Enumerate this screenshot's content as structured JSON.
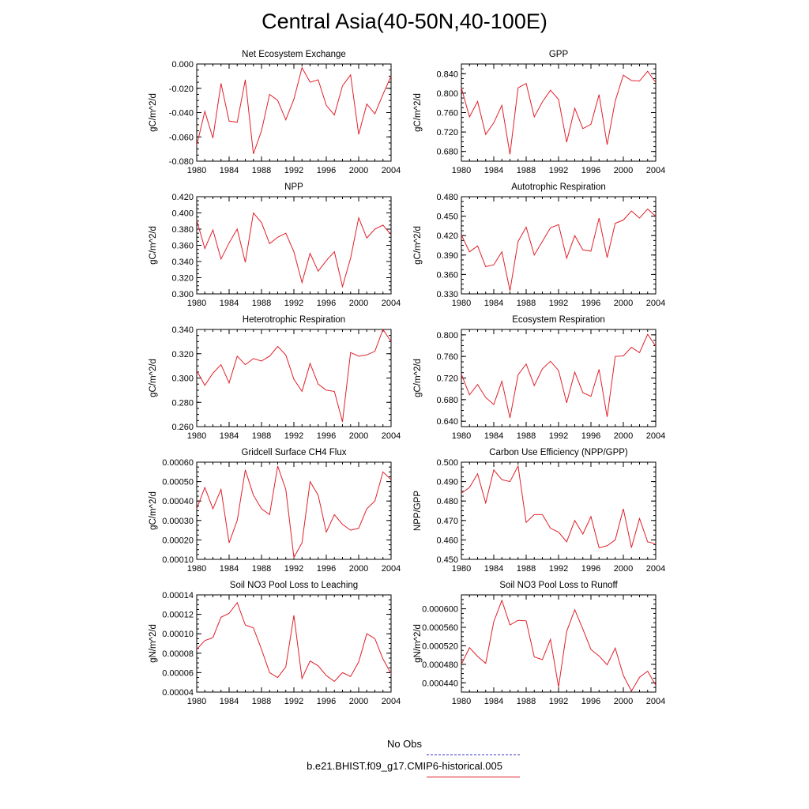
{
  "figure": {
    "title": "Central Asia(40-50N,40-100E)",
    "legend": [
      {
        "label": "No Obs",
        "color": "#3a3ac8",
        "style": "dashed"
      },
      {
        "label": "b.e21.BHIST.f09_g17.CMIP6-historical.005",
        "color": "#e0202a",
        "style": "solid"
      }
    ]
  },
  "chart_data": [
    {
      "type": "line",
      "title": "Net Ecosystem Exchange",
      "xlabel": "",
      "ylabel": "gC/m^2/d",
      "xlim": [
        1980,
        2004
      ],
      "ylim": [
        -0.08,
        0.0
      ],
      "xticks": [
        1980,
        1984,
        1988,
        1992,
        1996,
        2000,
        2004
      ],
      "yticks": [
        "-0.080",
        "-0.060",
        "-0.040",
        "-0.020",
        "0.000"
      ],
      "x": [
        1980,
        1981,
        1982,
        1983,
        1984,
        1985,
        1986,
        1987,
        1988,
        1989,
        1990,
        1991,
        1992,
        1993,
        1994,
        1995,
        1996,
        1997,
        1998,
        1999,
        2000,
        2001,
        2002,
        2003,
        2004
      ],
      "values": [
        -0.067,
        -0.039,
        -0.061,
        -0.016,
        -0.047,
        -0.048,
        -0.013,
        -0.074,
        -0.055,
        -0.025,
        -0.03,
        -0.046,
        -0.029,
        -0.003,
        -0.015,
        -0.013,
        -0.034,
        -0.042,
        -0.018,
        -0.009,
        -0.058,
        -0.033,
        -0.041,
        -0.025,
        -0.01
      ]
    },
    {
      "type": "line",
      "title": "GPP",
      "xlabel": "",
      "ylabel": "gC/m^2/d",
      "xlim": [
        1980,
        2004
      ],
      "ylim": [
        0.66,
        0.86
      ],
      "xticks": [
        1980,
        1984,
        1988,
        1992,
        1996,
        2000,
        2004
      ],
      "yticks": [
        "0.680",
        "0.720",
        "0.760",
        "0.800",
        "0.840"
      ],
      "x": [
        1980,
        1981,
        1982,
        1983,
        1984,
        1985,
        1986,
        1987,
        1988,
        1989,
        1990,
        1991,
        1992,
        1993,
        1994,
        1995,
        1996,
        1997,
        1998,
        1999,
        2000,
        2001,
        2002,
        2003,
        2004
      ],
      "values": [
        0.811,
        0.751,
        0.783,
        0.715,
        0.739,
        0.775,
        0.674,
        0.811,
        0.82,
        0.751,
        0.782,
        0.806,
        0.787,
        0.699,
        0.769,
        0.727,
        0.736,
        0.797,
        0.694,
        0.784,
        0.837,
        0.826,
        0.825,
        0.845,
        0.822
      ]
    },
    {
      "type": "line",
      "title": "NPP",
      "xlabel": "",
      "ylabel": "gC/m^2/d",
      "xlim": [
        1980,
        2004
      ],
      "ylim": [
        0.3,
        0.42
      ],
      "xticks": [
        1980,
        1984,
        1988,
        1992,
        1996,
        2000,
        2004
      ],
      "yticks": [
        "0.300",
        "0.320",
        "0.340",
        "0.360",
        "0.380",
        "0.400",
        "0.420"
      ],
      "x": [
        1980,
        1981,
        1982,
        1983,
        1984,
        1985,
        1986,
        1987,
        1988,
        1989,
        1990,
        1991,
        1992,
        1993,
        1994,
        1995,
        1996,
        1997,
        1998,
        1999,
        2000,
        2001,
        2002,
        2003,
        2004
      ],
      "values": [
        0.391,
        0.356,
        0.379,
        0.343,
        0.363,
        0.38,
        0.339,
        0.4,
        0.388,
        0.362,
        0.37,
        0.375,
        0.352,
        0.314,
        0.35,
        0.328,
        0.341,
        0.352,
        0.309,
        0.344,
        0.394,
        0.369,
        0.38,
        0.385,
        0.373
      ]
    },
    {
      "type": "line",
      "title": "Autotrophic Respiration",
      "xlabel": "",
      "ylabel": "gC/m^2/d",
      "xlim": [
        1980,
        2004
      ],
      "ylim": [
        0.33,
        0.48
      ],
      "xticks": [
        1980,
        1984,
        1988,
        1992,
        1996,
        2000,
        2004
      ],
      "yticks": [
        "0.330",
        "0.360",
        "0.390",
        "0.420",
        "0.450",
        "0.480"
      ],
      "x": [
        1980,
        1981,
        1982,
        1983,
        1984,
        1985,
        1986,
        1987,
        1988,
        1989,
        1990,
        1991,
        1992,
        1993,
        1994,
        1995,
        1996,
        1997,
        1998,
        1999,
        2000,
        2001,
        2002,
        2003,
        2004
      ],
      "values": [
        0.421,
        0.395,
        0.404,
        0.372,
        0.375,
        0.395,
        0.335,
        0.411,
        0.433,
        0.39,
        0.411,
        0.432,
        0.437,
        0.385,
        0.42,
        0.398,
        0.396,
        0.447,
        0.386,
        0.439,
        0.444,
        0.458,
        0.447,
        0.461,
        0.45
      ]
    },
    {
      "type": "line",
      "title": "Heterotrophic Respiration",
      "xlabel": "",
      "ylabel": "gC/m^2/d",
      "xlim": [
        1980,
        2004
      ],
      "ylim": [
        0.26,
        0.34
      ],
      "xticks": [
        1980,
        1984,
        1988,
        1992,
        1996,
        2000,
        2004
      ],
      "yticks": [
        "0.260",
        "0.280",
        "0.300",
        "0.320",
        "0.340"
      ],
      "x": [
        1980,
        1981,
        1982,
        1983,
        1984,
        1985,
        1986,
        1987,
        1988,
        1989,
        1990,
        1991,
        1992,
        1993,
        1994,
        1995,
        1996,
        1997,
        1998,
        1999,
        2000,
        2001,
        2002,
        2003,
        2004
      ],
      "values": [
        0.306,
        0.294,
        0.304,
        0.311,
        0.296,
        0.318,
        0.311,
        0.316,
        0.314,
        0.318,
        0.326,
        0.319,
        0.299,
        0.289,
        0.312,
        0.295,
        0.29,
        0.289,
        0.264,
        0.321,
        0.318,
        0.319,
        0.322,
        0.34,
        0.33
      ]
    },
    {
      "type": "line",
      "title": "Ecosystem Respiration",
      "xlabel": "",
      "ylabel": "gC/m^2/d",
      "xlim": [
        1980,
        2004
      ],
      "ylim": [
        0.63,
        0.81
      ],
      "xticks": [
        1980,
        1984,
        1988,
        1992,
        1996,
        2000,
        2004
      ],
      "yticks": [
        "0.640",
        "0.680",
        "0.720",
        "0.760",
        "0.800"
      ],
      "x": [
        1980,
        1981,
        1982,
        1983,
        1984,
        1985,
        1986,
        1987,
        1988,
        1989,
        1990,
        1991,
        1992,
        1993,
        1994,
        1995,
        1996,
        1997,
        1998,
        1999,
        2000,
        2001,
        2002,
        2003,
        2004
      ],
      "values": [
        0.727,
        0.689,
        0.708,
        0.684,
        0.671,
        0.714,
        0.646,
        0.726,
        0.746,
        0.706,
        0.737,
        0.751,
        0.734,
        0.674,
        0.731,
        0.693,
        0.686,
        0.736,
        0.648,
        0.76,
        0.761,
        0.777,
        0.767,
        0.801,
        0.779
      ]
    },
    {
      "type": "line",
      "title": "Gridcell Surface CH4 Flux",
      "xlabel": "",
      "ylabel": "gC/m^2/d",
      "xlim": [
        1980,
        2004
      ],
      "ylim": [
        0.0001,
        0.0006
      ],
      "xticks": [
        1980,
        1984,
        1988,
        1992,
        1996,
        2000,
        2004
      ],
      "yticks": [
        "0.00010",
        "0.00020",
        "0.00030",
        "0.00040",
        "0.00050",
        "0.00060"
      ],
      "x": [
        1980,
        1981,
        1982,
        1983,
        1984,
        1985,
        1986,
        1987,
        1988,
        1989,
        1990,
        1991,
        1992,
        1993,
        1994,
        1995,
        1996,
        1997,
        1998,
        1999,
        2000,
        2001,
        2002,
        2003,
        2004
      ],
      "values": [
        0.00036,
        0.00047,
        0.00036,
        0.00046,
        0.000185,
        0.0003,
        0.00056,
        0.00043,
        0.00036,
        0.00033,
        0.00058,
        0.00046,
        0.00011,
        0.000185,
        0.0005,
        0.00043,
        0.00024,
        0.00033,
        0.00028,
        0.00025,
        0.00026,
        0.00036,
        0.0004,
        0.00055,
        0.00051
      ]
    },
    {
      "type": "line",
      "title": "Carbon Use Efficiency (NPP/GPP)",
      "xlabel": "",
      "ylabel": "NPP/GPP",
      "xlim": [
        1980,
        2004
      ],
      "ylim": [
        0.45,
        0.5
      ],
      "xticks": [
        1980,
        1984,
        1988,
        1992,
        1996,
        2000,
        2004
      ],
      "yticks": [
        "0.450",
        "0.460",
        "0.470",
        "0.480",
        "0.490",
        "0.500"
      ],
      "x": [
        1980,
        1981,
        1982,
        1983,
        1984,
        1985,
        1986,
        1987,
        1988,
        1989,
        1990,
        1991,
        1992,
        1993,
        1994,
        1995,
        1996,
        1997,
        1998,
        1999,
        2000,
        2001,
        2002,
        2003,
        2004
      ],
      "values": [
        0.484,
        0.487,
        0.494,
        0.479,
        0.496,
        0.491,
        0.49,
        0.498,
        0.469,
        0.473,
        0.473,
        0.466,
        0.464,
        0.459,
        0.47,
        0.463,
        0.472,
        0.456,
        0.457,
        0.46,
        0.476,
        0.456,
        0.471,
        0.459,
        0.458
      ]
    },
    {
      "type": "line",
      "title": "Soil NO3 Pool Loss to Leaching",
      "xlabel": "",
      "ylabel": "gN/m^2/d",
      "xlim": [
        1980,
        2004
      ],
      "ylim": [
        4e-05,
        0.00014
      ],
      "xticks": [
        1980,
        1984,
        1988,
        1992,
        1996,
        2000,
        2004
      ],
      "yticks": [
        "0.00004",
        "0.00006",
        "0.00008",
        "0.00010",
        "0.00012",
        "0.00014"
      ],
      "x": [
        1980,
        1981,
        1982,
        1983,
        1984,
        1985,
        1986,
        1987,
        1988,
        1989,
        1990,
        1991,
        1992,
        1993,
        1994,
        1995,
        1996,
        1997,
        1998,
        1999,
        2000,
        2001,
        2002,
        2003,
        2004
      ],
      "values": [
        8.4e-05,
        9.3e-05,
        9.6e-05,
        0.000117,
        0.000121,
        0.000132,
        0.000109,
        0.000106,
        8.4e-05,
        6e-05,
        5.5e-05,
        6.6e-05,
        0.000119,
        5.4e-05,
        7.2e-05,
        6.7e-05,
        5.7e-05,
        5.1e-05,
        6e-05,
        5.6e-05,
        7.1e-05,
        0.0001,
        9.5e-05,
        7.4e-05,
        5.9e-05
      ]
    },
    {
      "type": "line",
      "title": "Soil NO3 Pool Loss to Runoff",
      "xlabel": "",
      "ylabel": "gN/m^2/d",
      "xlim": [
        1980,
        2004
      ],
      "ylim": [
        0.00042,
        0.00063
      ],
      "xticks": [
        1980,
        1984,
        1988,
        1992,
        1996,
        2000,
        2004
      ],
      "yticks": [
        "0.000440",
        "0.000480",
        "0.000520",
        "0.000560",
        "0.000600"
      ],
      "x": [
        1980,
        1981,
        1982,
        1983,
        1984,
        1985,
        1986,
        1987,
        1988,
        1989,
        1990,
        1991,
        1992,
        1993,
        1994,
        1995,
        1996,
        1997,
        1998,
        1999,
        2000,
        2001,
        2002,
        2003,
        2004
      ],
      "values": [
        0.00048,
        0.000516,
        0.000497,
        0.000482,
        0.000572,
        0.000618,
        0.000565,
        0.000575,
        0.000574,
        0.000496,
        0.00049,
        0.000534,
        0.000431,
        0.000551,
        0.000598,
        0.000556,
        0.000512,
        0.000498,
        0.000479,
        0.000515,
        0.000456,
        0.000422,
        0.000452,
        0.000465,
        0.000435
      ]
    }
  ]
}
